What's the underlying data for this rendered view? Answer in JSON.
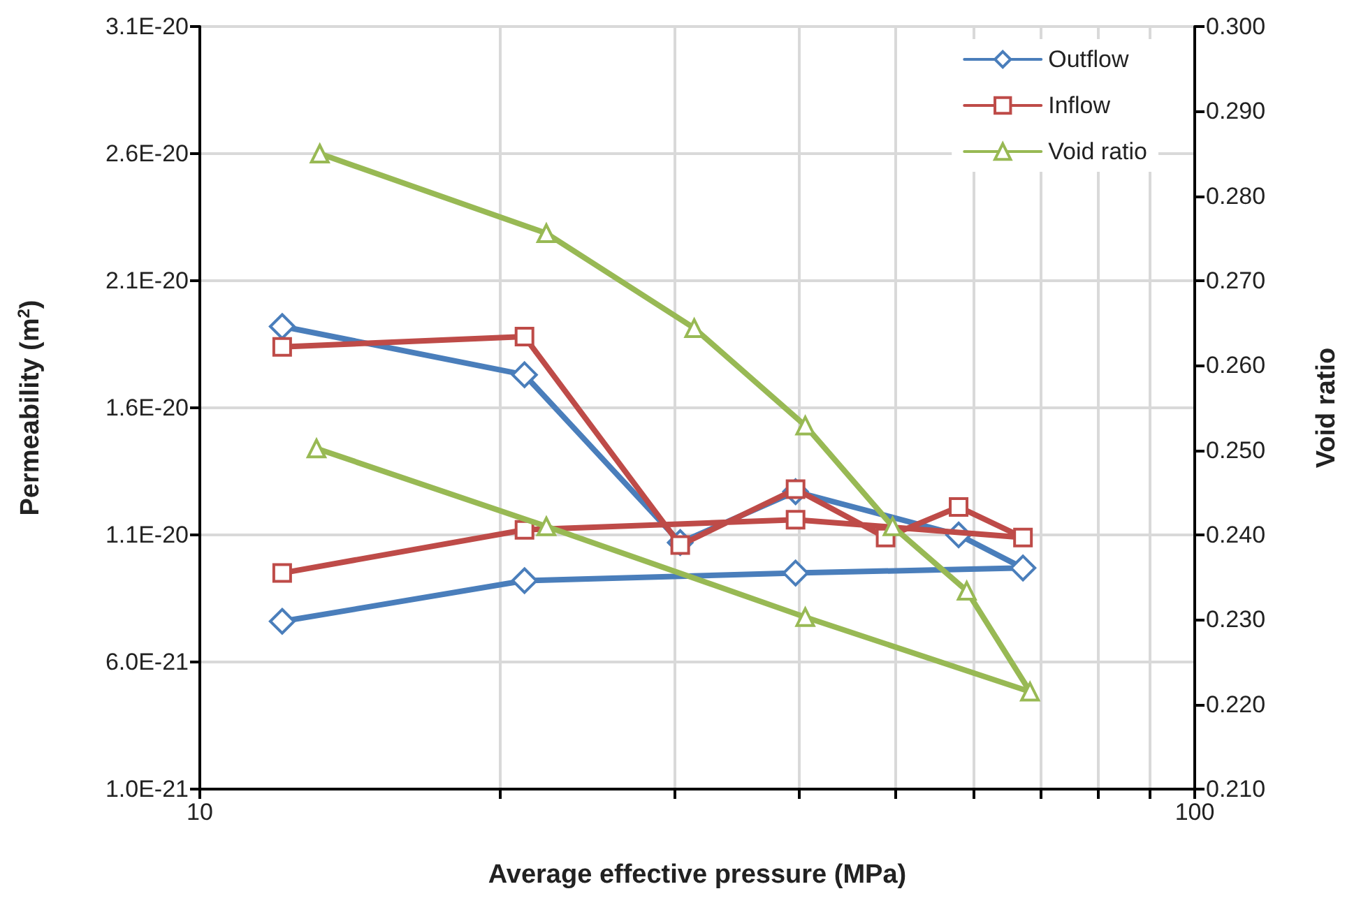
{
  "chart_data": {
    "type": "line",
    "xlabel": "Average effective pressure (MPa)",
    "ylabel": "Permeability (m$^{2}$)",
    "y2label": "Void ratio",
    "log": "x",
    "grid": true,
    "legend": "top right",
    "xlim": [
      10,
      100
    ],
    "xticks": [
      10,
      {
        "value": 20,
        "label": null
      },
      {
        "value": 30,
        "label": null
      },
      {
        "value": 40,
        "label": null
      },
      {
        "value": 50,
        "label": null
      },
      {
        "value": 60,
        "label": null
      },
      {
        "value": 70,
        "label": null
      },
      {
        "value": 80,
        "label": null
      },
      {
        "value": 90,
        "label": null
      },
      100
    ],
    "ylim": [
      1e-21,
      3.1e-20
    ],
    "yticks": [
      {
        "value": 1e-21,
        "label": "1.0E-21"
      },
      {
        "value": 6e-21,
        "label": "6.0E-21"
      },
      {
        "value": 1.1e-20,
        "label": "1.1E-20"
      },
      {
        "value": 1.6e-20,
        "label": "1.6E-20"
      },
      {
        "value": 2.1e-20,
        "label": "2.1E-20"
      },
      {
        "value": 2.6e-20,
        "label": "2.6E-20"
      },
      {
        "value": 3.1e-20,
        "label": "3.1E-20"
      }
    ],
    "y2lim": [
      0.21,
      0.3
    ],
    "y2ticks": [
      {
        "value": 0.21,
        "label": "0.210"
      },
      {
        "value": 0.22,
        "label": "0.220"
      },
      {
        "value": 0.23,
        "label": "0.230"
      },
      {
        "value": 0.24,
        "label": "0.240"
      },
      {
        "value": 0.25,
        "label": "0.250"
      },
      {
        "value": 0.26,
        "label": "0.260"
      },
      {
        "value": 0.27,
        "label": "0.270"
      },
      {
        "value": 0.28,
        "label": "0.280"
      },
      {
        "value": 0.29,
        "label": "0.290"
      },
      {
        "value": 0.3,
        "label": "0.300"
      }
    ],
    "series": [
      {
        "name": "Outflow",
        "color": "#4a7ebb",
        "marker": "diamond",
        "x": [
          12.1,
          21.2,
          30.4,
          39.7,
          57.9,
          67.2,
          39.7,
          21.2,
          12.1
        ],
        "values": [
          1.92e-20,
          1.73e-20,
          1.07e-20,
          1.27e-20,
          1.1e-20,
          9.7e-21,
          9.5e-21,
          9.2e-21,
          7.6e-21
        ]
      },
      {
        "name": "Inflow",
        "color": "#be4b48",
        "marker": "square",
        "x": [
          12.1,
          21.2,
          30.4,
          39.7,
          48.9,
          57.9,
          67.2,
          39.7,
          21.2,
          12.1
        ],
        "values": [
          1.84e-20,
          1.88e-20,
          1.06e-20,
          1.28e-20,
          1.09e-20,
          1.21e-20,
          1.09e-20,
          1.16e-20,
          1.12e-20,
          9.5e-21
        ]
      },
      {
        "name": "Void ratio",
        "color": "#98b954",
        "marker": "triangle",
        "axis": "y2",
        "x": [
          13.2,
          22.3,
          31.4,
          40.6,
          49.7,
          59.0,
          68.3,
          40.6,
          22.3,
          13.1
        ],
        "values": [
          0.285,
          0.2756,
          0.2644,
          0.2529,
          0.241,
          0.2334,
          0.2215,
          0.2303,
          0.241,
          0.2502
        ]
      }
    ]
  }
}
